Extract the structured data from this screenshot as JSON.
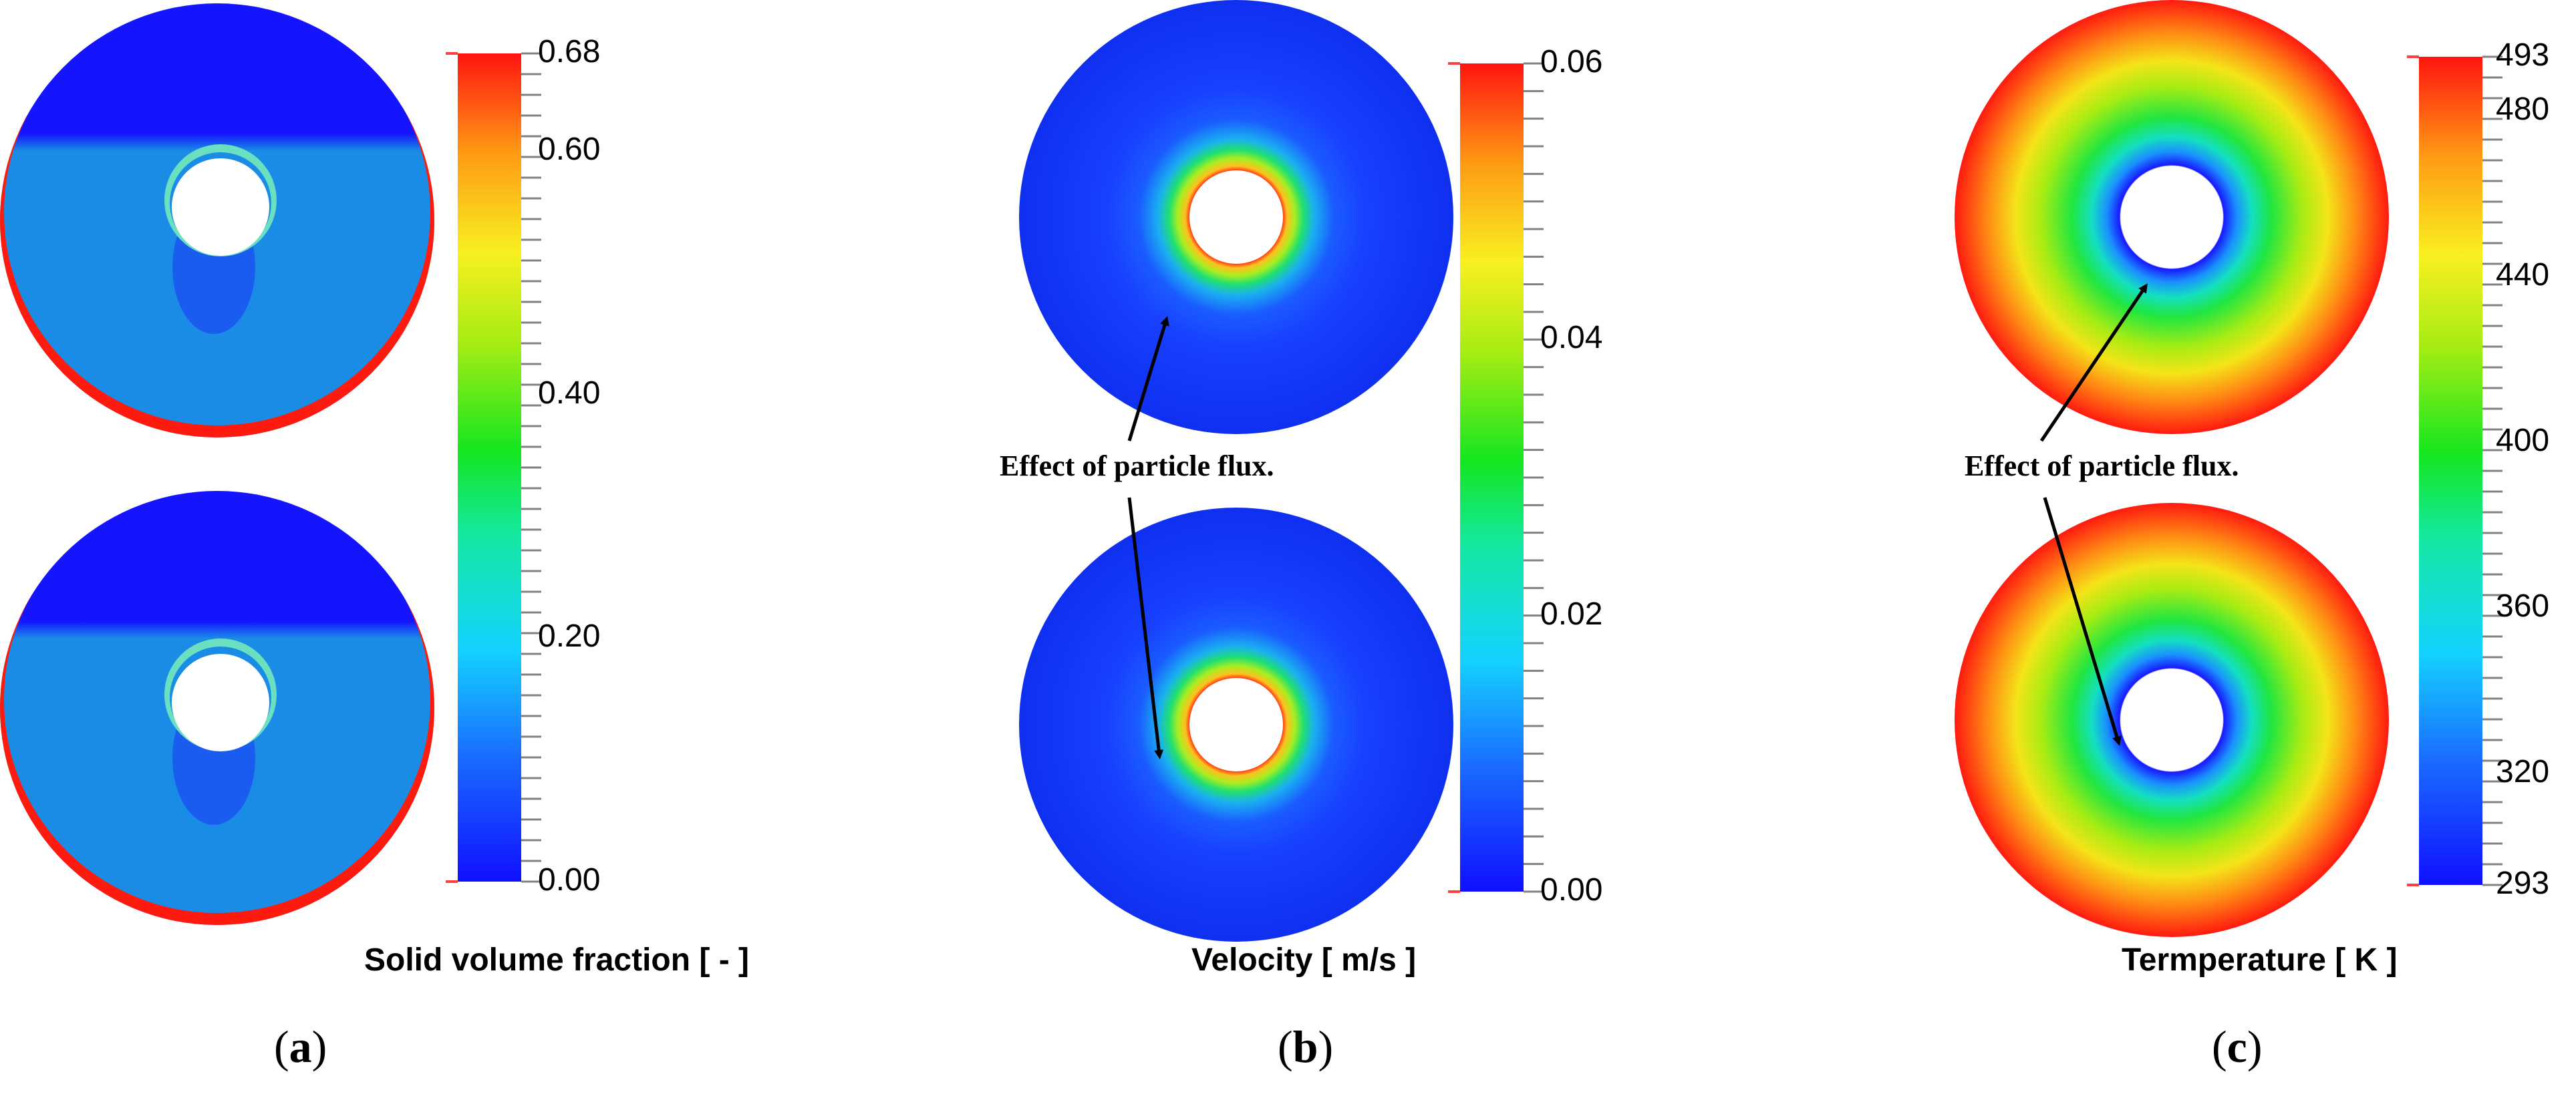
{
  "panels": [
    {
      "id": "a",
      "label": "a",
      "colorbar": {
        "title": "Solid volume fraction [ - ]",
        "min": 0.0,
        "max": 0.68,
        "ticks": [
          {
            "value": 0.68,
            "label": "0.68"
          },
          {
            "value": 0.6,
            "label": "0.60"
          },
          {
            "value": 0.4,
            "label": "0.40"
          },
          {
            "value": 0.2,
            "label": "0.20"
          },
          {
            "value": 0.0,
            "label": "0.00"
          }
        ]
      },
      "annotation": ""
    },
    {
      "id": "b",
      "label": "b",
      "colorbar": {
        "title": "Velocity [ m/s ]",
        "min": 0.0,
        "max": 0.06,
        "ticks": [
          {
            "value": 0.06,
            "label": "0.06"
          },
          {
            "value": 0.04,
            "label": "0.04"
          },
          {
            "value": 0.02,
            "label": "0.02"
          },
          {
            "value": 0.0,
            "label": "0.00"
          }
        ]
      },
      "annotation": "Effect of particle flux."
    },
    {
      "id": "c",
      "label": "c",
      "colorbar": {
        "title": "Termperature [ K ]",
        "min": 293,
        "max": 493,
        "ticks": [
          {
            "value": 493,
            "label": "493"
          },
          {
            "value": 480,
            "label": "480"
          },
          {
            "value": 440,
            "label": "440"
          },
          {
            "value": 400,
            "label": "400"
          },
          {
            "value": 360,
            "label": "360"
          },
          {
            "value": 320,
            "label": "320"
          },
          {
            "value": 293,
            "label": "293"
          }
        ]
      },
      "annotation": "Effect of particle flux."
    }
  ],
  "colors": {
    "low": "#1414ff",
    "high": "#ff1a10",
    "solid_bulk": "#1a8ce6"
  }
}
